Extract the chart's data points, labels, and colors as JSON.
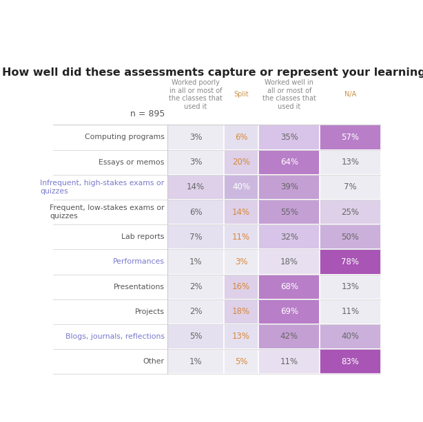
{
  "title": "How well did these assessments capture or represent your learning?",
  "n_label": "n = 895",
  "col_headers": [
    "Worked poorly\nin all or most of\nthe classes that\nused it",
    "Split",
    "Worked well in\nall or most of\nthe classes that\nused it",
    "N/A"
  ],
  "col_header_colors": [
    "#888888",
    "#c8914a",
    "#888888",
    "#c8914a"
  ],
  "rows": [
    {
      "label": "Computing programs",
      "values": [
        3,
        6,
        35,
        57
      ],
      "highlight": false
    },
    {
      "label": "Essays or memos",
      "values": [
        3,
        20,
        64,
        13
      ],
      "highlight": false
    },
    {
      "label": "Infrequent, high-stakes exams or\nquizzes",
      "values": [
        14,
        40,
        39,
        7
      ],
      "highlight": true
    },
    {
      "label": "Frequent, low-stakes exams or\nquizzes",
      "values": [
        6,
        14,
        55,
        25
      ],
      "highlight": false
    },
    {
      "label": "Lab reports",
      "values": [
        7,
        11,
        32,
        50
      ],
      "highlight": false
    },
    {
      "label": "Performances",
      "values": [
        1,
        3,
        18,
        78
      ],
      "highlight": true
    },
    {
      "label": "Presentations",
      "values": [
        2,
        16,
        68,
        13
      ],
      "highlight": false
    },
    {
      "label": "Projects",
      "values": [
        2,
        18,
        69,
        11
      ],
      "highlight": false
    },
    {
      "label": "Blogs, journals, reflections",
      "values": [
        5,
        13,
        42,
        40
      ],
      "highlight": true
    },
    {
      "label": "Other",
      "values": [
        1,
        5,
        11,
        83
      ],
      "highlight": false
    }
  ],
  "cell_colors": {
    "col0": {
      "vlight": "#eeeaf2",
      "light": "#ddd0e8",
      "mid": "#ccb0dc",
      "dark": "#ba90d0"
    },
    "col1": {
      "vlight": "#ede8f2",
      "light": "#ddd0ea",
      "mid": "#ccb0dc",
      "dark": "#ba90d0"
    },
    "col2": {
      "vlight": "#e6ddef",
      "light": "#d4b8e2",
      "mid": "#bf92d4",
      "dark": "#ab70c5"
    },
    "col3": {
      "vlight": "#e8e0f0",
      "light": "#d8c4e8",
      "mid": "#c09ad6",
      "dark": "#a860c0"
    }
  },
  "purple_label_color": "#7878cc",
  "grey_label_color": "#555555",
  "orange_text": "#d8883a",
  "white_text": "#ffffff",
  "dark_text": "#666666",
  "title_color": "#222222",
  "n_label_color": "#555555",
  "header_text_color": "#666666",
  "line_color": "#cccccc",
  "bg_color": "#ffffff",
  "figsize": [
    6.14,
    6.13
  ],
  "dpi": 100
}
